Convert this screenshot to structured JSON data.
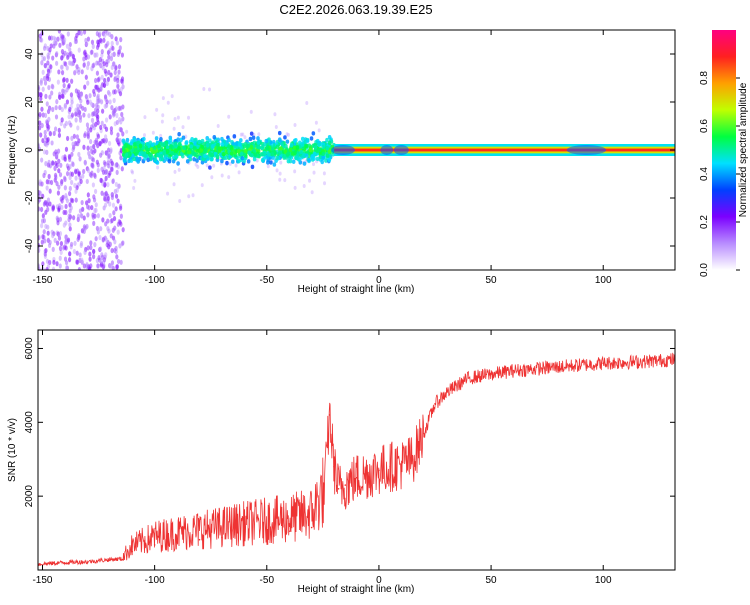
{
  "title": "C2E2.2026.063.19.39.E25",
  "chart_data": [
    {
      "type": "heatmap",
      "xlabel": "Height of straight line (km)",
      "ylabel": "Frequency (Hz)",
      "xlim": [
        -152,
        132
      ],
      "ylim": [
        -50,
        50
      ],
      "xticks": [
        -150,
        -100,
        -50,
        0,
        50,
        100
      ],
      "yticks": [
        -40,
        -20,
        0,
        20,
        40
      ],
      "colorbar": {
        "label": "Normalized spectral amplitude",
        "range": [
          0,
          1
        ],
        "ticks": [
          "0.0",
          "0.2",
          "0.4",
          "0.6",
          "0.8"
        ],
        "tick_values": [
          0,
          0.2,
          0.4,
          0.6,
          0.8
        ],
        "colors": [
          "#ffffff",
          "#b88cff",
          "#7b00ff",
          "#0040ff",
          "#00e0ff",
          "#00ff40",
          "#c0ff00",
          "#ffa000",
          "#ff2020",
          "#ff0080"
        ]
      },
      "regions": [
        {
          "x": [
            -152,
            -114
          ],
          "freq_spread": 50,
          "amplitude": 0.15
        },
        {
          "x": [
            -114,
            -20
          ],
          "freq_spread": 8,
          "amplitude": 0.3
        },
        {
          "x": [
            -20,
            132
          ],
          "freq_center": 0,
          "freq_spread": 1,
          "amplitude": 0.9
        }
      ]
    },
    {
      "type": "line",
      "xlabel": "Height of straight line (km)",
      "ylabel": "SNR (10 * v/v)",
      "xlim": [
        -152,
        132
      ],
      "ylim": [
        0,
        6500
      ],
      "xticks": [
        -150,
        -100,
        -50,
        0,
        50,
        100
      ],
      "yticks": [
        2000,
        4000,
        6000
      ],
      "color": "#ee3333",
      "x": [
        -152,
        -140,
        -130,
        -120,
        -114,
        -110,
        -100,
        -90,
        -80,
        -70,
        -60,
        -50,
        -40,
        -30,
        -25,
        -22,
        -20,
        -18,
        -15,
        -10,
        -5,
        0,
        5,
        10,
        15,
        20,
        25,
        30,
        40,
        50,
        60,
        80,
        100,
        120,
        132
      ],
      "y": [
        130,
        180,
        200,
        260,
        280,
        500,
        680,
        760,
        820,
        880,
        950,
        1000,
        1050,
        1150,
        1600,
        4200,
        2800,
        2200,
        2300,
        2500,
        2600,
        2700,
        2800,
        2850,
        3000,
        3700,
        4500,
        4800,
        5200,
        5300,
        5400,
        5500,
        5600,
        5650,
        5700
      ]
    }
  ]
}
